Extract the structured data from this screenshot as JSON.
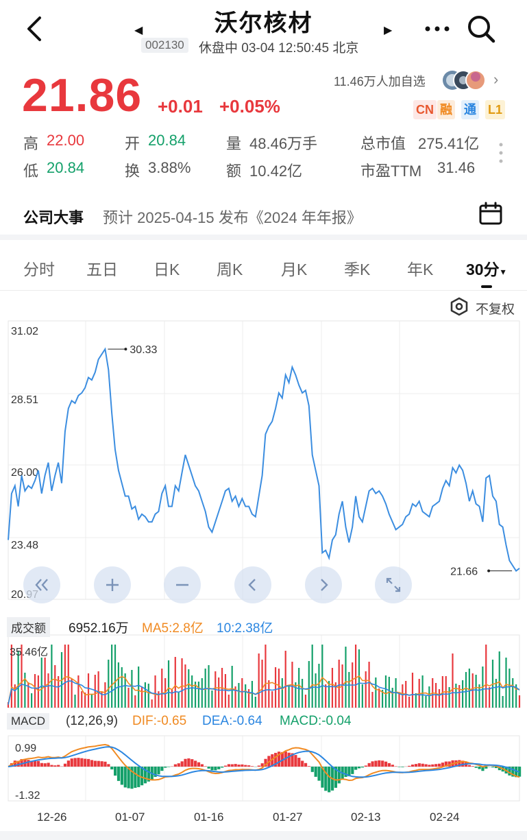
{
  "header": {
    "title": "沃尔核材",
    "code": "002130",
    "status": "休盘中 03-04 12:50:45 北京",
    "prev_arrow": "◀",
    "next_arrow": "▶"
  },
  "quote": {
    "price": "21.86",
    "change": "+0.01",
    "change_pct": "+0.05%",
    "watch_count": "11.46万人加自选",
    "watch_arrow": "›",
    "tags": [
      "CN",
      "融",
      "通",
      "L1"
    ],
    "colors": {
      "up": "#e8383d",
      "down": "#14a06a"
    }
  },
  "stats": {
    "high_label": "高",
    "high": "22.00",
    "low_label": "低",
    "low": "20.84",
    "open_label": "开",
    "open": "20.84",
    "turnover_label": "换",
    "turnover": "3.88%",
    "volume_label": "量",
    "volume": "48.46万手",
    "amount_label": "额",
    "amount": "10.42亿",
    "mcap_label": "总市值",
    "mcap": "275.41亿",
    "pe_label": "市盈TTM",
    "pe": "31.46"
  },
  "event": {
    "title": "公司大事",
    "text": "预计 2025-04-15 发布《2024 年年报》"
  },
  "tabs": {
    "items": [
      "分时",
      "五日",
      "日K",
      "周K",
      "月K",
      "季K",
      "年K",
      "30分"
    ],
    "active_index": 7,
    "active_caret": "▾"
  },
  "adjust": {
    "label": "不复权"
  },
  "controls": [
    "double-left-icon",
    "zoom-in-icon",
    "zoom-out-icon",
    "left-icon",
    "right-icon",
    "fullscreen-icon"
  ],
  "volume": {
    "label": "成交额",
    "value": "6952.16万",
    "ma5": "MA5:2.8亿",
    "ma10": "10:2.38亿",
    "max_label": "35.46亿"
  },
  "macd": {
    "label": "MACD",
    "params": "(12,26,9)",
    "dif": "DIF:-0.65",
    "dea": "DEA:-0.64",
    "macd": "MACD:-0.04",
    "top_label": "0.99",
    "bottom_label": "-1.32"
  },
  "chart_data": {
    "type": "line",
    "title": "",
    "ylabels": [
      "31.02",
      "28.51",
      "26.00",
      "23.48",
      "20.97"
    ],
    "ylim": [
      20.97,
      31.02
    ],
    "xlabels": [
      "12-26",
      "01-07",
      "01-16",
      "01-27",
      "02-13",
      "02-24"
    ],
    "max_annotation": {
      "value": 30.33,
      "label": "30.33"
    },
    "min_annotation": {
      "value": 21.66,
      "label": "21.66"
    },
    "line_color": "#3b8de0",
    "series": [
      {
        "values": [
          22.9,
          24.7,
          25.0,
          24.2,
          25.4,
          24.8,
          25.0,
          24.9,
          25.2,
          25.6,
          24.7,
          25.4,
          25.9,
          24.8,
          25.4,
          25.9,
          25.1,
          27.1,
          28.0,
          28.3,
          28.2,
          28.5,
          28.6,
          28.8,
          29.2,
          29.1,
          29.4,
          29.9,
          30.1,
          30.3,
          29.5,
          27.8,
          26.4,
          25.6,
          25.1,
          24.6,
          24.6,
          24.1,
          24.2,
          23.7,
          23.9,
          23.8,
          23.6,
          23.6,
          23.9,
          24.0,
          24.7,
          25.0,
          24.2,
          24.2,
          25.0,
          24.8,
          25.5,
          26.2,
          25.8,
          25.4,
          25.0,
          24.8,
          24.4,
          24.0,
          23.4,
          23.2,
          23.6,
          24.0,
          24.4,
          24.8,
          24.9,
          24.4,
          24.6,
          24.2,
          24.5,
          24.2,
          24.2,
          23.9,
          23.8,
          24.6,
          25.4,
          27.0,
          27.3,
          27.5,
          28.0,
          28.6,
          28.4,
          29.3,
          29.0,
          29.6,
          29.3,
          28.9,
          28.6,
          28.7,
          28.1,
          26.2,
          25.6,
          25.0,
          22.4,
          22.5,
          22.2,
          22.9,
          23.1,
          23.9,
          24.4,
          23.4,
          22.8,
          23.4,
          24.6,
          23.8,
          23.6,
          24.2,
          24.8,
          24.9,
          24.7,
          24.8,
          24.6,
          24.3,
          23.9,
          23.6,
          23.3,
          23.4,
          23.5,
          23.8,
          23.9,
          24.3,
          24.2,
          24.4,
          24.0,
          23.9,
          23.8,
          24.2,
          24.3,
          24.4,
          24.9,
          25.2,
          25.0,
          25.7,
          25.5,
          25.8,
          25.6,
          25.1,
          24.4,
          24.8,
          24.3,
          24.2,
          23.6,
          25.3,
          25.4,
          24.6,
          24.4,
          23.5,
          23.4,
          22.7,
          22.1,
          21.9,
          21.7,
          21.8
        ]
      }
    ]
  }
}
